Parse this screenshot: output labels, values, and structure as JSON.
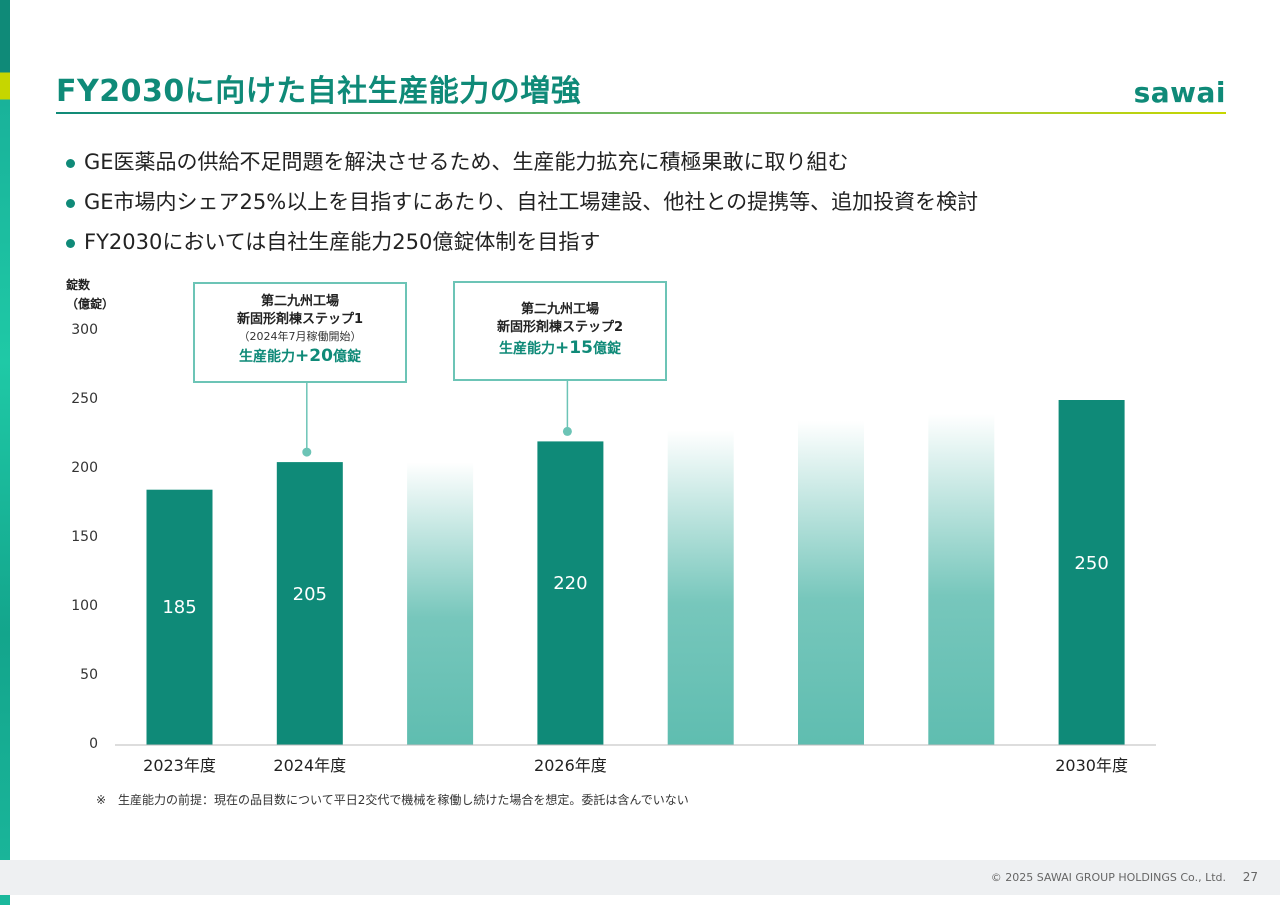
{
  "slide": {
    "title": "FY2030に向けた自社生産能力の増強",
    "logo_text": "sawai",
    "bullets": [
      "GE医薬品の供給不足問題を解決させるため、生産能力拡充に積極果敢に取り組む",
      "GE市場内シェア25%以上を目指すにあたり、自社工場建設、他社との提携等、追加投資を検討",
      "FY2030においては自社生産能力250億錠体制を目指す"
    ],
    "note": "※　生産能力の前提：現在の品目数について平日2交代で機械を稼働し続けた場合を想定。委託は含んでいない",
    "copyright": "© 2025 SAWAI GROUP HOLDINGS Co., Ltd.",
    "page_number": "27",
    "colors": {
      "accent": "#0f8a78",
      "projection": "#5fbdb0",
      "callout_border": "#6cc4b6"
    }
  },
  "chart_data": {
    "type": "bar",
    "ylabel_line1": "錠数",
    "ylabel_line2": "（億錠）",
    "ylim": [
      0,
      300
    ],
    "yticks": [
      "0",
      "50",
      "100",
      "150",
      "200",
      "250",
      "300"
    ],
    "categories": [
      "2023年度",
      "2024年度",
      "",
      "2026年度",
      "",
      "",
      "",
      "2030年度"
    ],
    "values": [
      185,
      205,
      205,
      220,
      228,
      235,
      240,
      250
    ],
    "bar_styles": [
      "solid",
      "solid",
      "gradient",
      "solid",
      "gradient",
      "gradient",
      "gradient",
      "solid"
    ],
    "data_labels": [
      "185",
      "205",
      "",
      "220",
      "",
      "",
      "",
      "250"
    ],
    "callouts": [
      {
        "line1": "第二九州工場",
        "line2": "新固形剤棟ステップ1",
        "line3": "（2024年7月稼働開始）",
        "capacity_prefix": "生産能力",
        "capacity_value": "+20",
        "capacity_suffix": "億錠"
      },
      {
        "line1": "第二九州工場",
        "line2": "新固形剤棟ステップ2",
        "line3": "",
        "capacity_prefix": "生産能力",
        "capacity_value": "+15",
        "capacity_suffix": "億錠"
      }
    ]
  }
}
